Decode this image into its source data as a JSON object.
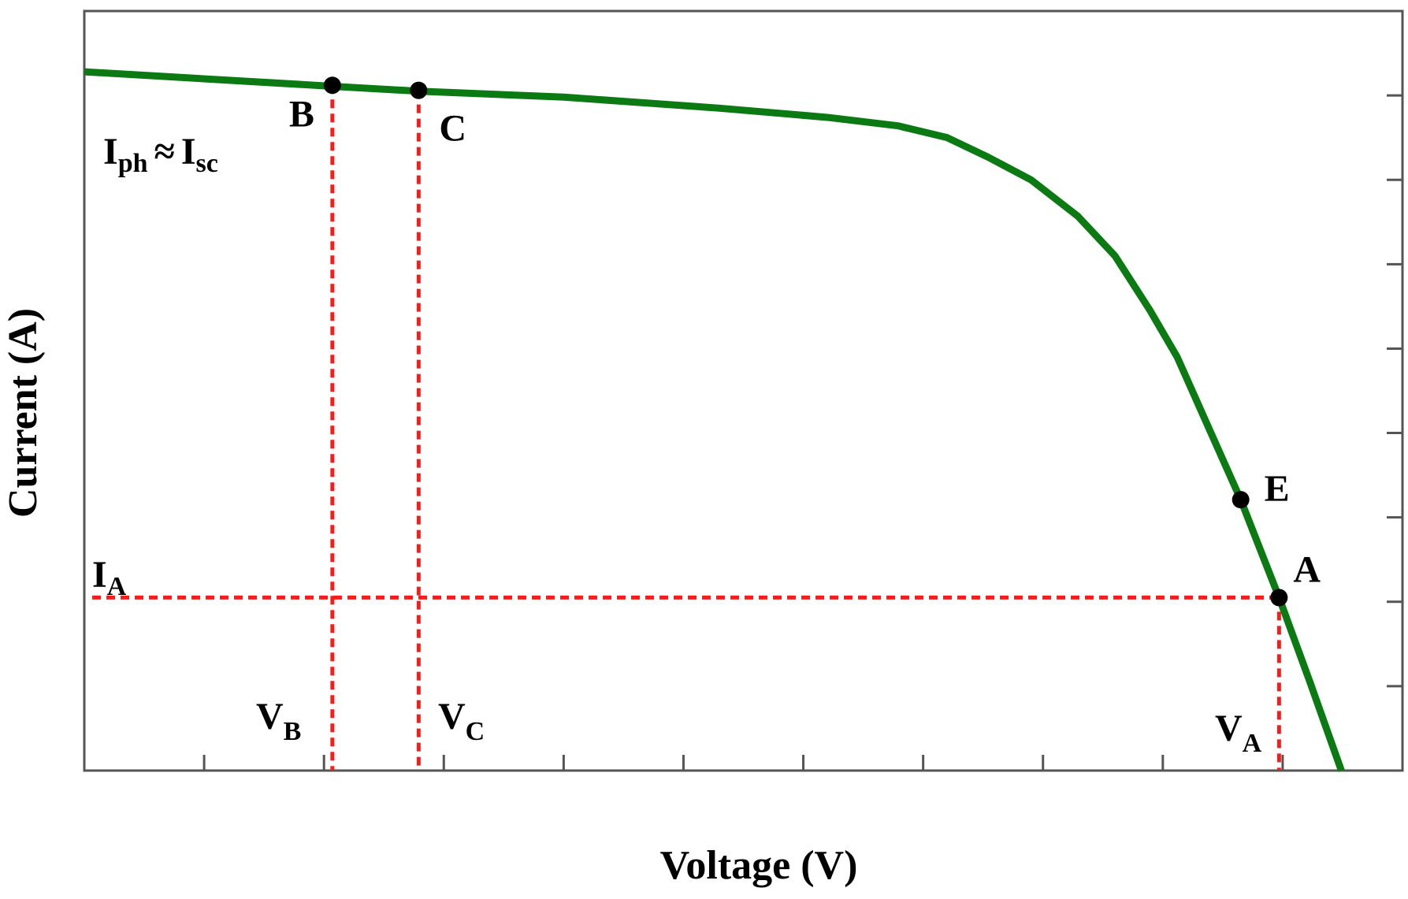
{
  "chart_data": {
    "type": "line",
    "xlabel": "Voltage (V)",
    "ylabel": "Current (A)",
    "xlim": [
      0,
      11
    ],
    "ylim": [
      0,
      9
    ],
    "xticks": [
      1,
      2,
      3,
      4,
      5,
      6,
      7,
      8,
      9,
      10
    ],
    "yticks": [
      1,
      2,
      3,
      4,
      5,
      6,
      7,
      8
    ],
    "series": [
      {
        "color": "#0b7a12",
        "x": [
          0,
          2.05,
          2.79,
          4,
          5.29,
          6.2,
          6.79,
          7.2,
          7.54,
          7.9,
          8.29,
          8.6,
          8.89,
          9.12,
          9.33,
          9.65,
          9.97,
          10.23,
          10.49
        ],
        "values": [
          8.28,
          8.11,
          8.05,
          7.98,
          7.85,
          7.74,
          7.64,
          7.5,
          7.27,
          7.0,
          6.57,
          6.1,
          5.46,
          4.9,
          4.23,
          3.21,
          2.05,
          1.04,
          0
        ]
      }
    ],
    "points": [
      {
        "name": "B",
        "x": 2.07,
        "y": 8.12
      },
      {
        "name": "C",
        "x": 2.79,
        "y": 8.06
      },
      {
        "name": "E",
        "x": 9.65,
        "y": 3.21
      },
      {
        "name": "A",
        "x": 9.97,
        "y": 2.05
      }
    ],
    "guide_color": "#ff1a1a",
    "annotations": {
      "iph": {
        "a": "I",
        "a_sub": "ph",
        "op": "≈",
        "b": "I",
        "b_sub": "sc"
      },
      "ia": {
        "text": "I",
        "sub": "A"
      },
      "vb": {
        "text": "V",
        "sub": "B"
      },
      "vc": {
        "text": "V",
        "sub": "C"
      },
      "va": {
        "text": "V",
        "sub": "A"
      }
    }
  }
}
